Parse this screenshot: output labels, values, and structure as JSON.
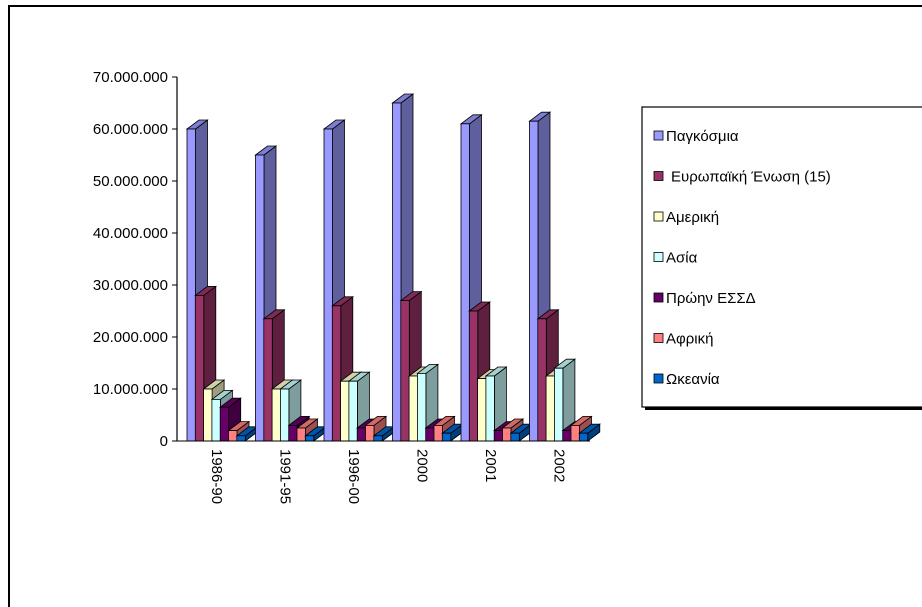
{
  "chart_data": {
    "type": "bar",
    "title": "",
    "xlabel": "",
    "ylabel": "",
    "ylim": [
      0,
      70000000
    ],
    "yticks": [
      0,
      10000000,
      20000000,
      30000000,
      40000000,
      50000000,
      60000000,
      70000000
    ],
    "ytick_labels": [
      "0",
      "10.000.000",
      "20.000.000",
      "30.000.000",
      "40.000.000",
      "50.000.000",
      "60.000.000",
      "70.000.000"
    ],
    "categories": [
      "1986-90",
      "1991-95",
      "1996-00",
      "2000",
      "2001",
      "2002"
    ],
    "legend_position": "right",
    "grid": false,
    "series": [
      {
        "name": "Παγκόσμια",
        "color": "#9999ff",
        "values": [
          60000000,
          55000000,
          60000000,
          65000000,
          61000000,
          61500000
        ]
      },
      {
        "name": "Ευρωπαϊκή Ένωση (15)",
        "color": "#993366",
        "values": [
          28000000,
          23500000,
          26000000,
          27000000,
          25000000,
          23500000
        ]
      },
      {
        "name": "Αμερική",
        "color": "#ffffcc",
        "values": [
          10000000,
          10000000,
          11500000,
          12500000,
          12000000,
          12500000
        ]
      },
      {
        "name": "Ασία",
        "color": "#ccffff",
        "values": [
          8000000,
          10000000,
          11500000,
          13000000,
          12500000,
          14000000
        ]
      },
      {
        "name": "Πρώην ΕΣΣΔ",
        "color": "#660066",
        "values": [
          6500000,
          3000000,
          2500000,
          2500000,
          2000000,
          2000000
        ]
      },
      {
        "name": "Αφρική",
        "color": "#ff8080",
        "values": [
          2000000,
          2500000,
          3000000,
          3000000,
          2500000,
          3000000
        ]
      },
      {
        "name": "Ωκεανία",
        "color": "#0066cc",
        "values": [
          1000000,
          1000000,
          1000000,
          1500000,
          1500000,
          1500000
        ]
      }
    ]
  }
}
